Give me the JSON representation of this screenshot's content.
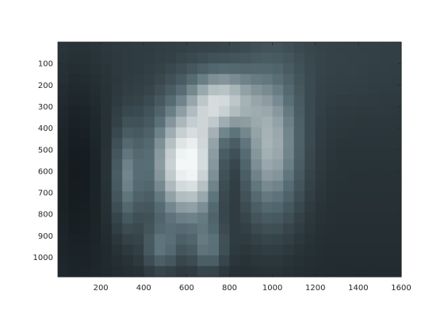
{
  "chart_data": {
    "type": "heatmap",
    "title": "",
    "xlabel": "",
    "ylabel": "",
    "xlim": [
      0,
      1600
    ],
    "ylim": [
      0,
      1090
    ],
    "y_axis_reversed": true,
    "x_ticks": [
      200,
      400,
      600,
      800,
      1000,
      1200,
      1400,
      1600
    ],
    "y_ticks": [
      100,
      200,
      300,
      400,
      500,
      600,
      700,
      800,
      900,
      1000
    ],
    "x_tick_labels": [
      "200",
      "400",
      "600",
      "800",
      "1000",
      "1200",
      "1400",
      "1600"
    ],
    "y_tick_labels": [
      "100",
      "200",
      "300",
      "400",
      "500",
      "600",
      "700",
      "800",
      "900",
      "1000"
    ],
    "grid": false,
    "colormap": "bone",
    "colors": {
      "background": "#ffffff",
      "axis": "#262626",
      "bone_dark": "#0c1114",
      "bone_mid": "#5a7078",
      "bone_light": "#f4f7f7"
    },
    "grid_cells": {
      "cols": 32,
      "rows": 22
    }
  }
}
